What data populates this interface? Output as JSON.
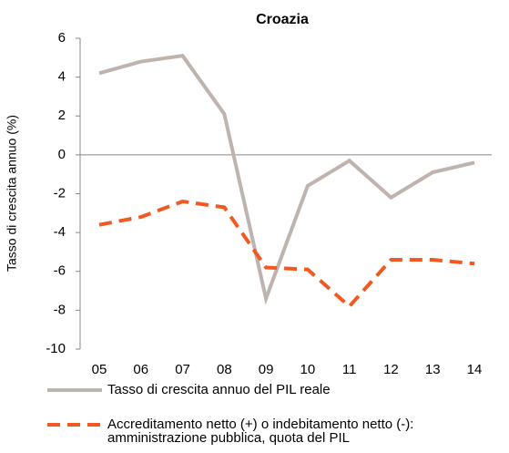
{
  "chart_data": {
    "type": "line",
    "title": "Croazia",
    "y_label": "Tasso di crescita annuo (%)",
    "categories": [
      "05",
      "06",
      "07",
      "08",
      "09",
      "10",
      "11",
      "12",
      "13",
      "14"
    ],
    "series": [
      {
        "name": "Tasso di crescita annuo del PIL reale",
        "color": "#bfb3ae",
        "dashed": false,
        "values": [
          4.2,
          4.8,
          5.1,
          2.1,
          -7.4,
          -1.6,
          -0.3,
          -2.2,
          -0.9,
          -0.4
        ]
      },
      {
        "name": "Accreditamento netto (+) o indebitamento netto (-):\namministrazione pubblica, quota del PIL",
        "color": "#f05a22",
        "dashed": true,
        "values": [
          -3.6,
          -3.2,
          -2.4,
          -2.7,
          -5.8,
          -5.9,
          -7.8,
          -5.4,
          -5.4,
          -5.6
        ]
      }
    ],
    "ylim": [
      -10,
      6
    ],
    "yticks": [
      -10,
      -8,
      -6,
      -4,
      -2,
      0,
      2,
      4,
      6
    ],
    "grid": false,
    "legend": "bottom"
  }
}
